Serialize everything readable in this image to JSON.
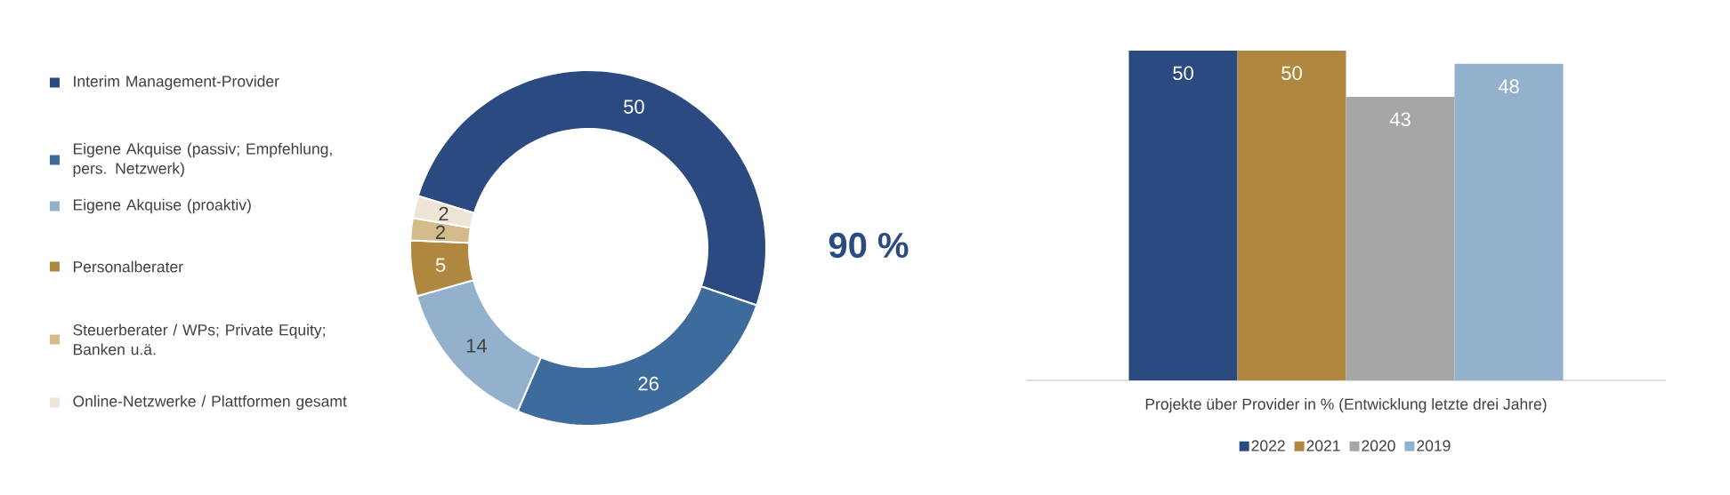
{
  "chart_data": [
    {
      "type": "donut",
      "categories": [
        "Interim Management-Provider",
        "Eigene Akquise (passiv; Empfehlung, pers. Netzwerk)",
        "Eigene Akquise (proaktiv)",
        "Personalberater",
        "Steuerberater / WPs; Private Equity; Banken u.ä.",
        "Online-Netzwerke / Plattformen gesamt"
      ],
      "values": [
        50,
        26,
        14,
        5,
        2,
        2
      ],
      "colors": [
        "#2b4a80",
        "#3d6b9c",
        "#93b1cd",
        "#b0873f",
        "#d4bb8b",
        "#efe5d6"
      ],
      "data_labels": true,
      "legend": "left",
      "annotations": [
        "90 %"
      ]
    },
    {
      "type": "bar",
      "categories": [
        null
      ],
      "xlabel": "Projekte über Provider in % (Entwicklung letzte drei Jahre)",
      "series": [
        {
          "name": "2022",
          "color": "#2b4a80",
          "values": [
            50
          ]
        },
        {
          "name": "2021",
          "color": "#b0873f",
          "values": [
            50
          ]
        },
        {
          "name": "2020",
          "color": "#a6a6a6",
          "values": [
            43
          ]
        },
        {
          "name": "2019",
          "color": "#93b1cd",
          "values": [
            48
          ]
        }
      ],
      "data_labels": true,
      "legend": "bottom"
    }
  ]
}
